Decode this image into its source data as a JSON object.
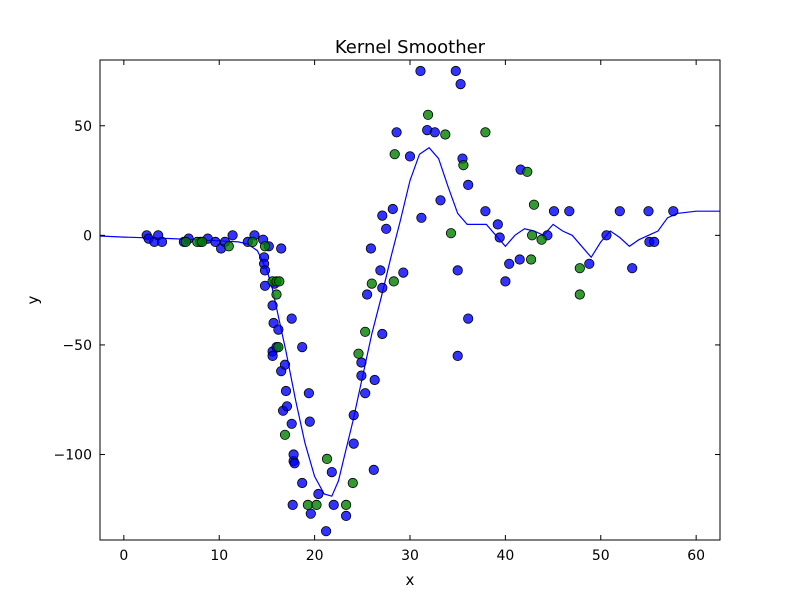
{
  "chart_data": {
    "type": "scatter",
    "title": "Kernel Smoother",
    "xlabel": "x",
    "ylabel": "y",
    "xlim": [
      -2.5,
      62.5
    ],
    "ylim": [
      -139,
      80
    ],
    "xticks": [
      0,
      10,
      20,
      30,
      40,
      50,
      60
    ],
    "yticks": [
      -100,
      -50,
      0,
      50
    ],
    "ytick_labels": [
      "−100",
      "−50",
      "0",
      "50"
    ],
    "colors": {
      "blue": "#0000ff",
      "green": "#008000",
      "line": "#0000ff",
      "frame": "#000000"
    },
    "series": [
      {
        "name": "blue points",
        "color": "#0000ff",
        "points": [
          [
            2.4,
            0
          ],
          [
            2.6,
            -1.5
          ],
          [
            3.2,
            -3
          ],
          [
            3.6,
            0
          ],
          [
            4.0,
            -3
          ],
          [
            6.3,
            -3
          ],
          [
            6.8,
            -1.5
          ],
          [
            8.0,
            -3
          ],
          [
            8.8,
            -1.5
          ],
          [
            9.6,
            -3
          ],
          [
            10.2,
            -6
          ],
          [
            10.6,
            -3
          ],
          [
            11.4,
            0
          ],
          [
            13.0,
            -3
          ],
          [
            13.7,
            0
          ],
          [
            14.6,
            -2
          ],
          [
            14.7,
            -10
          ],
          [
            14.7,
            -13
          ],
          [
            14.8,
            -16
          ],
          [
            14.8,
            -23
          ],
          [
            15.2,
            -5
          ],
          [
            15.6,
            -32
          ],
          [
            15.8,
            -22
          ],
          [
            15.7,
            -40
          ],
          [
            15.6,
            -53
          ],
          [
            15.6,
            -55
          ],
          [
            16.0,
            -51
          ],
          [
            16.2,
            -43
          ],
          [
            16.5,
            -62
          ],
          [
            16.5,
            -6
          ],
          [
            16.7,
            -80
          ],
          [
            16.9,
            -59
          ],
          [
            17.0,
            -71
          ],
          [
            17.1,
            -78
          ],
          [
            17.6,
            -38
          ],
          [
            17.6,
            -86
          ],
          [
            17.8,
            -103
          ],
          [
            17.8,
            -100
          ],
          [
            17.9,
            -104
          ],
          [
            17.7,
            -123
          ],
          [
            18.7,
            -51
          ],
          [
            18.7,
            -113
          ],
          [
            19.4,
            -72
          ],
          [
            19.5,
            -85
          ],
          [
            19.6,
            -127
          ],
          [
            20.4,
            -118
          ],
          [
            21.2,
            -135
          ],
          [
            21.8,
            -108
          ],
          [
            22.0,
            -123
          ],
          [
            23.3,
            -128
          ],
          [
            24.1,
            -82
          ],
          [
            24.1,
            -95
          ],
          [
            24.9,
            -64
          ],
          [
            24.9,
            -58
          ],
          [
            25.3,
            -72
          ],
          [
            25.5,
            -27
          ],
          [
            25.9,
            -6
          ],
          [
            26.2,
            -107
          ],
          [
            26.3,
            -66
          ],
          [
            26.9,
            -16
          ],
          [
            27.1,
            -24
          ],
          [
            27.1,
            -45
          ],
          [
            27.1,
            9
          ],
          [
            27.5,
            3
          ],
          [
            28.2,
            12
          ],
          [
            28.6,
            47
          ],
          [
            29.3,
            -17
          ],
          [
            30.0,
            36
          ],
          [
            31.1,
            75
          ],
          [
            31.2,
            8
          ],
          [
            31.8,
            48
          ],
          [
            32.6,
            47
          ],
          [
            33.2,
            16
          ],
          [
            34.8,
            75
          ],
          [
            35.0,
            -16
          ],
          [
            35.0,
            -55
          ],
          [
            35.3,
            69
          ],
          [
            35.5,
            35
          ],
          [
            36.1,
            -38
          ],
          [
            36.1,
            23
          ],
          [
            37.9,
            11
          ],
          [
            39.2,
            5
          ],
          [
            39.4,
            -1
          ],
          [
            40.0,
            -21
          ],
          [
            40.4,
            -13
          ],
          [
            41.5,
            -11
          ],
          [
            41.6,
            30
          ],
          [
            44.4,
            0
          ],
          [
            45.1,
            11
          ],
          [
            46.7,
            11
          ],
          [
            48.8,
            -13
          ],
          [
            50.6,
            0
          ],
          [
            52.0,
            11
          ],
          [
            53.3,
            -15
          ],
          [
            55.0,
            11
          ],
          [
            55.1,
            -3
          ],
          [
            55.6,
            -3
          ],
          [
            57.6,
            11
          ]
        ]
      },
      {
        "name": "green points",
        "color": "#008000",
        "points": [
          [
            6.5,
            -3
          ],
          [
            7.7,
            -3
          ],
          [
            8.2,
            -3
          ],
          [
            11.0,
            -5
          ],
          [
            13.5,
            -3
          ],
          [
            14.8,
            -5
          ],
          [
            15.6,
            -21
          ],
          [
            16.0,
            -21
          ],
          [
            16.0,
            -27
          ],
          [
            16.2,
            -51
          ],
          [
            16.3,
            -21
          ],
          [
            16.9,
            -91
          ],
          [
            19.3,
            -123
          ],
          [
            20.2,
            -123
          ],
          [
            21.3,
            -102
          ],
          [
            23.3,
            -123
          ],
          [
            24.0,
            -113
          ],
          [
            24.6,
            -54
          ],
          [
            25.3,
            -44
          ],
          [
            26.0,
            -22
          ],
          [
            28.3,
            -21
          ],
          [
            28.4,
            37
          ],
          [
            31.9,
            55
          ],
          [
            33.7,
            46
          ],
          [
            34.3,
            1
          ],
          [
            35.6,
            32
          ],
          [
            37.9,
            47
          ],
          [
            42.3,
            29
          ],
          [
            42.7,
            -11
          ],
          [
            42.8,
            0
          ],
          [
            43.0,
            14
          ],
          [
            43.8,
            -2
          ],
          [
            47.8,
            -15
          ],
          [
            47.8,
            -27
          ]
        ]
      }
    ],
    "smoother": {
      "name": "kernel smoother",
      "x": [
        -2.5,
        0,
        5,
        10,
        12,
        13,
        14,
        15,
        15.5,
        16,
        17,
        18,
        19,
        20,
        21,
        21.8,
        22.5,
        23,
        24,
        25,
        26,
        27,
        28,
        29,
        30,
        31,
        32,
        33,
        34,
        35,
        36,
        37,
        38,
        39,
        40,
        41,
        42,
        43,
        44,
        45,
        46,
        47,
        48,
        49,
        50,
        51,
        52,
        53,
        54,
        55,
        56,
        57,
        58,
        60,
        62.5
      ],
      "y": [
        -0.3,
        -0.8,
        -1.5,
        -2.5,
        -3,
        -4,
        -7,
        -16,
        -23,
        -33,
        -53,
        -75,
        -95,
        -110,
        -118,
        -119,
        -112,
        -103,
        -85,
        -65,
        -45,
        -28,
        -10,
        7,
        25,
        37,
        40,
        35,
        22,
        10,
        5,
        5,
        5,
        0,
        -5,
        0,
        3,
        2,
        0,
        5,
        2,
        0,
        -5,
        -10,
        -3,
        2,
        -1,
        -5,
        -2,
        0,
        2,
        8,
        10,
        11,
        11
      ]
    }
  }
}
